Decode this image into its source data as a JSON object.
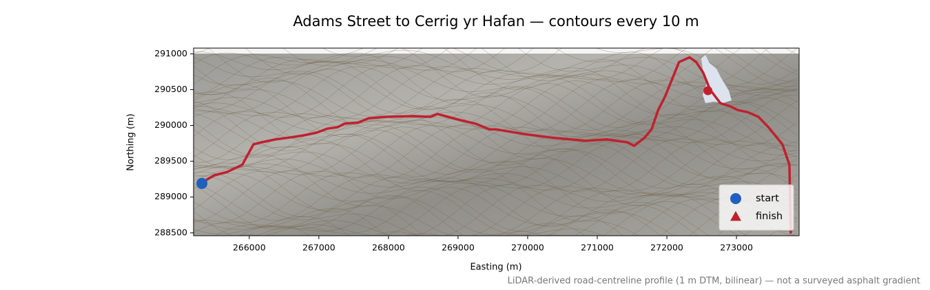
{
  "chart_data": {
    "type": "line",
    "title": "Adams Street to Cerrig yr Hafan — contours every 10 m",
    "xlabel": "Easting (m)",
    "ylabel": "Northing (m)",
    "footnote": "LiDAR-derived road-centreline profile (1 m DTM, bilinear) — not a surveyed asphalt gradient",
    "xlim": [
      265200,
      273900
    ],
    "ylim": [
      288460,
      291080
    ],
    "xticks": [
      266000,
      267000,
      268000,
      269000,
      270000,
      271000,
      272000,
      273000
    ],
    "yticks": [
      288500,
      289000,
      289500,
      290000,
      290500,
      291000
    ],
    "legend_loc": "lower right",
    "route": {
      "color": "#c0202e",
      "x": [
        265320,
        265385,
        265500,
        265680,
        265900,
        266060,
        266180,
        266375,
        266575,
        266775,
        266970,
        267120,
        267270,
        267370,
        267565,
        267715,
        267960,
        268360,
        268605,
        268705,
        268855,
        269050,
        269250,
        269450,
        269550,
        269945,
        270340,
        270835,
        271135,
        271430,
        271530,
        271680,
        271780,
        271875,
        271975,
        272075,
        272175,
        272325,
        272420,
        272520,
        272620,
        272770,
        272915,
        273015,
        273165,
        273315,
        273460,
        273660,
        273760,
        273780
      ],
      "y": [
        289190,
        289240,
        289305,
        289350,
        289450,
        289735,
        289765,
        289805,
        289830,
        289860,
        289900,
        289955,
        289975,
        290025,
        290040,
        290100,
        290120,
        290130,
        290120,
        290160,
        290120,
        290070,
        290025,
        289945,
        289945,
        289880,
        289830,
        289785,
        289805,
        289765,
        289715,
        289830,
        289945,
        290215,
        290405,
        290645,
        290885,
        290950,
        290885,
        290740,
        290500,
        290310,
        290265,
        290215,
        290185,
        290120,
        289975,
        289735,
        289450,
        288490
      ]
    },
    "markers": [
      {
        "name": "start",
        "color": "#1f5fbf",
        "marker": "circle",
        "x": 265320,
        "y": 289190
      },
      {
        "name": "finish",
        "color": "#c0202e",
        "marker": "triangle",
        "x": 272590,
        "y": 290485
      }
    ]
  }
}
